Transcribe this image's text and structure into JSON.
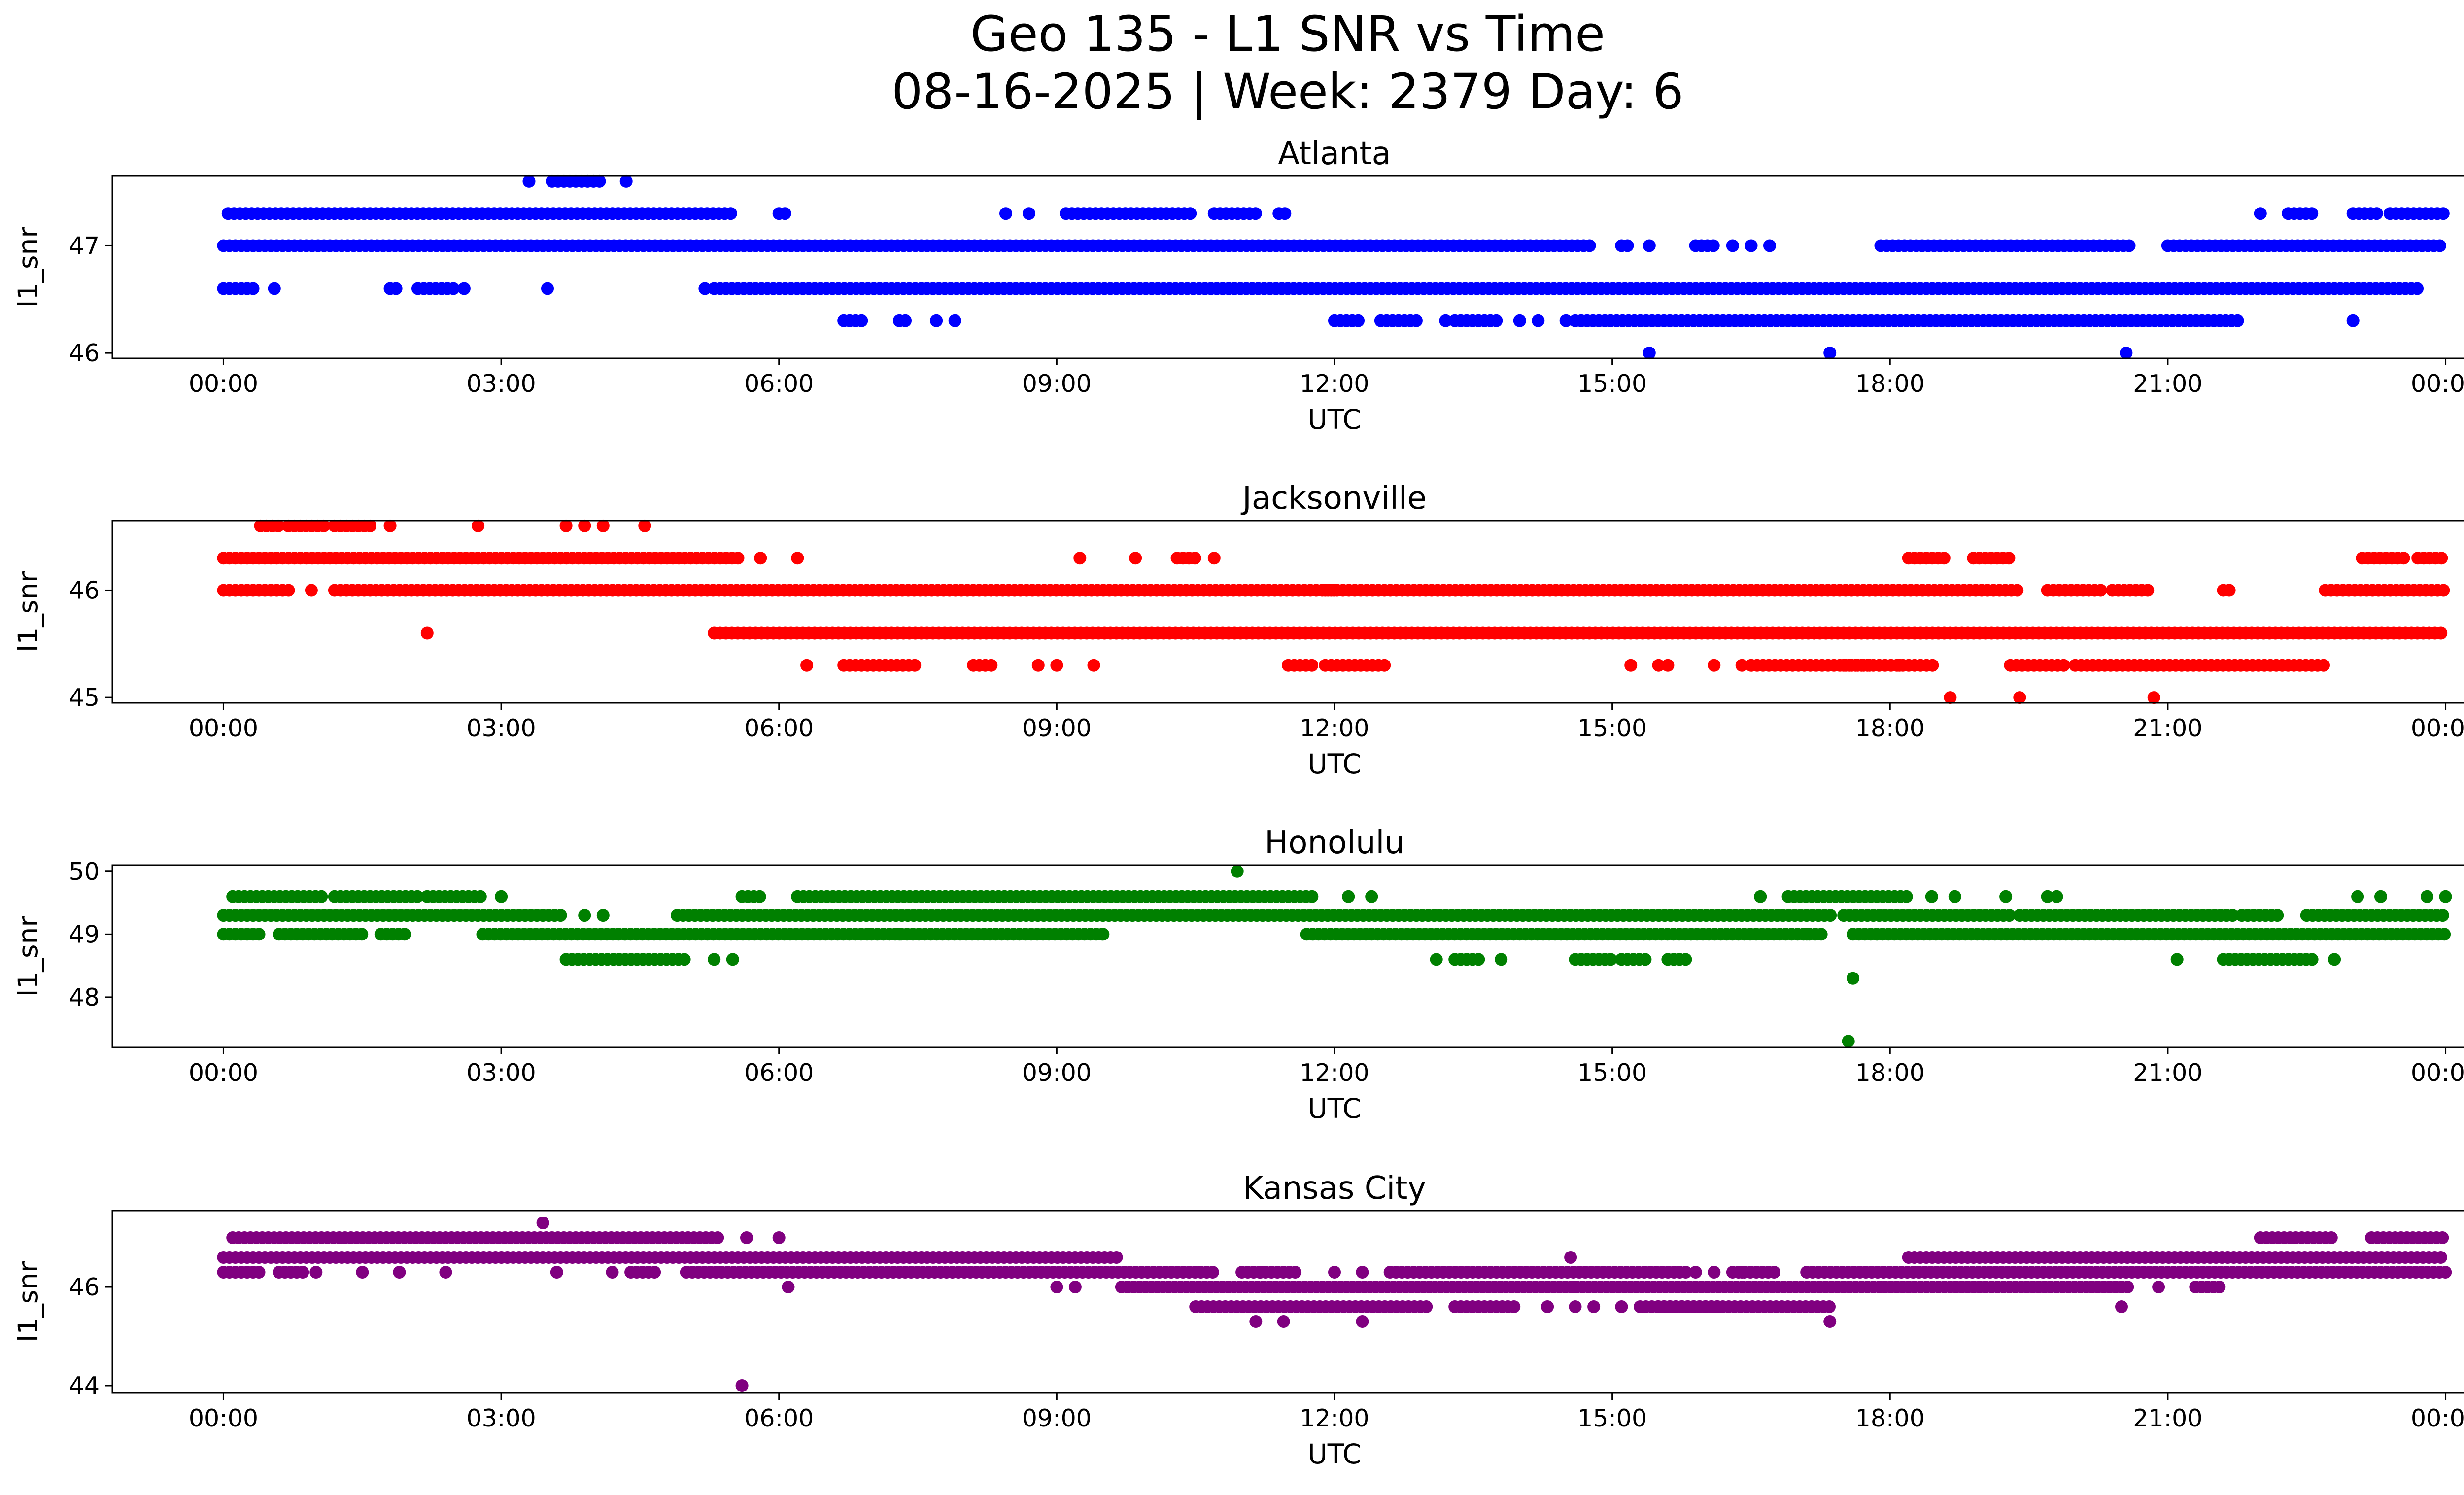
{
  "figure": {
    "title_line1": "Geo 135 - L1 SNR vs Time",
    "title_line2": "08-16-2025 | Week: 2379 Day: 6"
  },
  "chart_data": [
    {
      "type": "scatter",
      "title": "Atlanta",
      "xlabel": "UTC",
      "ylabel": "l1_snr",
      "color": "#0000ff",
      "xlim": [
        -1.2,
        25.2
      ],
      "ylim": [
        45.95,
        47.65
      ],
      "xticks": [
        "00:00",
        "03:00",
        "06:00",
        "09:00",
        "12:00",
        "15:00",
        "18:00",
        "21:00",
        "00:00"
      ],
      "yticks": [
        46,
        47
      ],
      "series": [
        {
          "name": "47.3",
          "y": 47.3,
          "segments": [
            [
              0.05,
              5.5
            ],
            [
              6.0,
              6.1
            ],
            [
              9.1,
              10.5
            ],
            [
              10.7,
              11.2
            ],
            [
              11.4,
              11.5
            ],
            [
              22.0,
              22.05
            ],
            [
              22.3,
              22.6
            ],
            [
              23.0,
              23.3
            ],
            [
              23.4,
              24.0
            ]
          ],
          "points": [
            8.45,
            8.7
          ]
        },
        {
          "name": "47.0",
          "y": 47.0,
          "segments": [
            [
              0.0,
              14.8
            ],
            [
              15.1,
              15.2
            ],
            [
              15.9,
              16.1
            ],
            [
              17.9,
              20.6
            ],
            [
              21.0,
              24.0
            ]
          ],
          "points": [
            15.4,
            16.3,
            16.5,
            16.7
          ]
        },
        {
          "name": "46.6",
          "y": 46.6,
          "segments": [
            [
              0.0,
              0.35
            ],
            [
              1.8,
              1.9
            ],
            [
              2.1,
              2.5
            ],
            [
              5.3,
              11.5
            ],
            [
              10.6,
              23.7
            ]
          ],
          "points": [
            0.55,
            2.6,
            3.5,
            5.2
          ]
        },
        {
          "name": "46.3",
          "y": 46.3,
          "segments": [
            [
              6.7,
              6.9
            ],
            [
              7.3,
              7.4
            ],
            [
              12.0,
              12.3
            ],
            [
              12.5,
              12.9
            ],
            [
              13.3,
              13.8
            ],
            [
              14.6,
              21.8
            ]
          ],
          "points": [
            7.7,
            7.9,
            13.2,
            14.0,
            14.2,
            14.5,
            23.0
          ]
        },
        {
          "name": "47.6",
          "y": 47.6,
          "segments": [
            [
              3.55,
              4.1
            ]
          ],
          "points": [
            3.3,
            4.35
          ]
        },
        {
          "name": "46.0",
          "y": 46.0,
          "segments": [],
          "points": [
            15.4,
            17.35,
            20.55
          ]
        }
      ]
    },
    {
      "type": "scatter",
      "title": "Jacksonville",
      "xlabel": "UTC",
      "ylabel": "l1_snr",
      "color": "#ff0000",
      "xlim": [
        -1.2,
        25.2
      ],
      "ylim": [
        44.95,
        46.65
      ],
      "xticks": [
        "00:00",
        "03:00",
        "06:00",
        "09:00",
        "12:00",
        "15:00",
        "18:00",
        "21:00",
        "00:00"
      ],
      "yticks": [
        45,
        46
      ],
      "series": [
        {
          "name": "46.6",
          "y": 46.6,
          "segments": [
            [
              0.4,
              0.6
            ],
            [
              0.7,
              1.1
            ],
            [
              1.2,
              1.6
            ]
          ],
          "points": [
            1.8,
            2.75,
            3.7,
            3.9,
            4.1,
            4.55
          ]
        },
        {
          "name": "46.3",
          "y": 46.3,
          "segments": [
            [
              0.0,
              5.6
            ],
            [
              10.3,
              10.5
            ],
            [
              18.2,
              18.6
            ],
            [
              18.9,
              19.3
            ],
            [
              23.1,
              23.6
            ],
            [
              23.7,
              24.0
            ]
          ],
          "points": [
            5.8,
            6.2,
            9.25,
            9.85,
            10.7
          ]
        },
        {
          "name": "46.0",
          "y": 46.0,
          "segments": [
            [
              0.0,
              0.75
            ],
            [
              1.2,
              12.0
            ],
            [
              11.9,
              19.4
            ],
            [
              19.7,
              20.3
            ],
            [
              20.4,
              20.8
            ],
            [
              21.6,
              21.7
            ],
            [
              22.7,
              24.0
            ]
          ],
          "points": [
            0.95
          ]
        },
        {
          "name": "45.6",
          "y": 45.6,
          "segments": [
            [
              5.3,
              24.0
            ]
          ],
          "points": [
            2.2
          ]
        },
        {
          "name": "45.3",
          "y": 45.3,
          "segments": [
            [
              6.7,
              7.5
            ],
            [
              8.1,
              8.3
            ],
            [
              11.5,
              11.8
            ],
            [
              11.9,
              12.6
            ],
            [
              16.5,
              17.8
            ],
            [
              17.5,
              18.5
            ],
            [
              19.3,
              19.9
            ],
            [
              20.0,
              22.7
            ]
          ],
          "points": [
            6.3,
            8.8,
            9.0,
            9.4,
            15.2,
            15.5,
            15.6,
            16.1,
            16.4,
            18.1
          ]
        },
        {
          "name": "45.0",
          "y": 45.0,
          "segments": [],
          "points": [
            18.65,
            19.4,
            20.85
          ]
        }
      ]
    },
    {
      "type": "scatter",
      "title": "Honolulu",
      "xlabel": "UTC",
      "ylabel": "l1_snr",
      "color": "#008000",
      "xlim": [
        -1.2,
        25.2
      ],
      "ylim": [
        47.2,
        50.1
      ],
      "xticks": [
        "00:00",
        "03:00",
        "06:00",
        "09:00",
        "12:00",
        "15:00",
        "18:00",
        "21:00",
        "00:00"
      ],
      "yticks": [
        48,
        49,
        50
      ],
      "series": [
        {
          "name": "49.6",
          "y": 49.6,
          "segments": [
            [
              0.1,
              1.1
            ],
            [
              1.2,
              2.1
            ],
            [
              2.2,
              2.8
            ],
            [
              5.6,
              5.8
            ],
            [
              6.2,
              11.8
            ],
            [
              16.9,
              18.2
            ]
          ],
          "points": [
            3.0,
            12.15,
            12.4,
            16.6,
            18.45,
            18.7,
            19.25,
            19.7,
            19.8,
            23.05,
            23.3,
            23.8,
            24.0
          ]
        },
        {
          "name": "49.3",
          "y": 49.3,
          "segments": [
            [
              0.0,
              3.7
            ],
            [
              4.9,
              17.4
            ],
            [
              17.5,
              19.3
            ],
            [
              19.4,
              21.7
            ],
            [
              21.8,
              22.2
            ],
            [
              22.5,
              24.0
            ]
          ],
          "points": [
            3.9,
            4.1
          ]
        },
        {
          "name": "49.0",
          "y": 49.0,
          "segments": [
            [
              0.0,
              0.4
            ],
            [
              0.6,
              1.5
            ],
            [
              1.7,
              2.0
            ],
            [
              2.8,
              7.0
            ],
            [
              7.0,
              9.5
            ],
            [
              11.7,
              17.3
            ],
            [
              17.6,
              24.0
            ]
          ],
          "points": [
            7.3,
            9.5,
            17.1
          ]
        },
        {
          "name": "48.6",
          "y": 48.6,
          "segments": [
            [
              3.7,
              5.0
            ],
            [
              13.3,
              13.6
            ],
            [
              14.6,
              15.0
            ],
            [
              15.1,
              15.4
            ],
            [
              15.6,
              15.8
            ],
            [
              21.6,
              22.6
            ]
          ],
          "points": [
            5.3,
            5.5,
            13.1,
            13.8,
            21.1,
            22.8
          ]
        },
        {
          "name": "50.0",
          "y": 50.0,
          "segments": [],
          "points": [
            10.95
          ]
        },
        {
          "name": "48.3",
          "y": 48.3,
          "segments": [],
          "points": [
            17.6
          ]
        },
        {
          "name": "47.3",
          "y": 47.3,
          "segments": [],
          "points": [
            17.55
          ]
        }
      ]
    },
    {
      "type": "scatter",
      "title": "Kansas City",
      "xlabel": "UTC",
      "ylabel": "l1_snr",
      "color": "#800080",
      "xlim": [
        -1.2,
        25.2
      ],
      "ylim": [
        43.85,
        47.55
      ],
      "xticks": [
        "00:00",
        "03:00",
        "06:00",
        "09:00",
        "12:00",
        "15:00",
        "18:00",
        "21:00",
        "00:00"
      ],
      "yticks": [
        44,
        46
      ],
      "series": [
        {
          "name": "47.0",
          "y": 47.0,
          "segments": [
            [
              0.1,
              5.4
            ],
            [
              22.0,
              22.8
            ],
            [
              23.2,
              24.0
            ]
          ],
          "points": [
            5.65,
            6.0
          ]
        },
        {
          "name": "46.6",
          "y": 46.6,
          "segments": [
            [
              0.0,
              9.7
            ],
            [
              18.2,
              24.0
            ]
          ],
          "points": [
            14.55
          ]
        },
        {
          "name": "46.3",
          "y": 46.3,
          "segments": [
            [
              0.0,
              0.4
            ],
            [
              0.6,
              0.9
            ],
            [
              4.4,
              4.7
            ],
            [
              5.0,
              10.7
            ],
            [
              11.0,
              11.6
            ],
            [
              12.6,
              15.8
            ],
            [
              16.3,
              16.8
            ],
            [
              17.1,
              24.0
            ]
          ],
          "points": [
            1.0,
            1.5,
            1.9,
            2.4,
            3.6,
            4.2,
            11.2,
            12.0,
            12.3,
            15.9,
            16.1,
            16.4
          ]
        },
        {
          "name": "46.0",
          "y": 46.0,
          "segments": [
            [
              9.7,
              17.5
            ],
            [
              17.5,
              20.6
            ],
            [
              21.3,
              21.6
            ]
          ],
          "points": [
            6.1,
            9.0,
            9.2,
            20.9
          ]
        },
        {
          "name": "45.6",
          "y": 45.6,
          "segments": [
            [
              10.5,
              13.0
            ],
            [
              13.3,
              14.0
            ],
            [
              15.3,
              17.4
            ],
            [
              15.5,
              16.2
            ]
          ],
          "points": [
            14.3,
            14.6,
            14.8,
            15.1,
            20.5
          ]
        },
        {
          "name": "45.3",
          "y": 45.3,
          "segments": [],
          "points": [
            11.15,
            11.45,
            12.3,
            17.35
          ]
        },
        {
          "name": "47.3",
          "y": 47.3,
          "segments": [],
          "points": [
            3.45
          ]
        },
        {
          "name": "44.0",
          "y": 44.0,
          "segments": [],
          "points": [
            5.6
          ]
        }
      ]
    }
  ]
}
